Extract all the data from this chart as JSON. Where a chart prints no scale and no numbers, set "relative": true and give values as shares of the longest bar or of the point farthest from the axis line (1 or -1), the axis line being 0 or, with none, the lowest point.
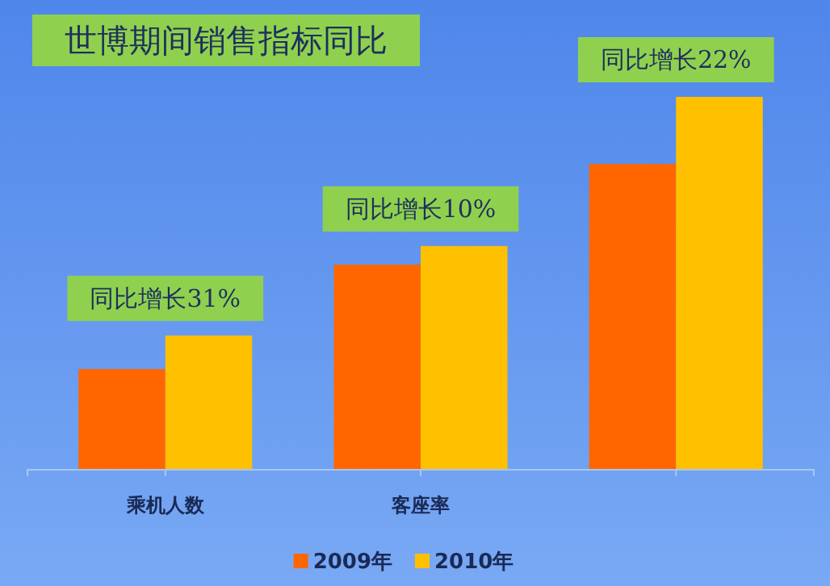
{
  "chart_data": {
    "type": "bar",
    "title": "世博期间销售指标同比",
    "categories": [
      "乘机人数",
      "客座率",
      null
    ],
    "relative": true,
    "series": [
      {
        "name": "2009年",
        "color": "#ff6600",
        "values": [
          0.27,
          0.55,
          0.82
        ]
      },
      {
        "name": "2010年",
        "color": "#ffc000",
        "values": [
          0.36,
          0.6,
          1
        ]
      }
    ],
    "annotations": [
      {
        "text": "同比增长31%",
        "x": "乘机人数",
        "y": 0.36
      },
      {
        "text": "同比增长10%",
        "x": "客座率",
        "y": 0.6
      },
      "同比增长22%"
    ],
    "legend": "bottom",
    "grid": false
  }
}
